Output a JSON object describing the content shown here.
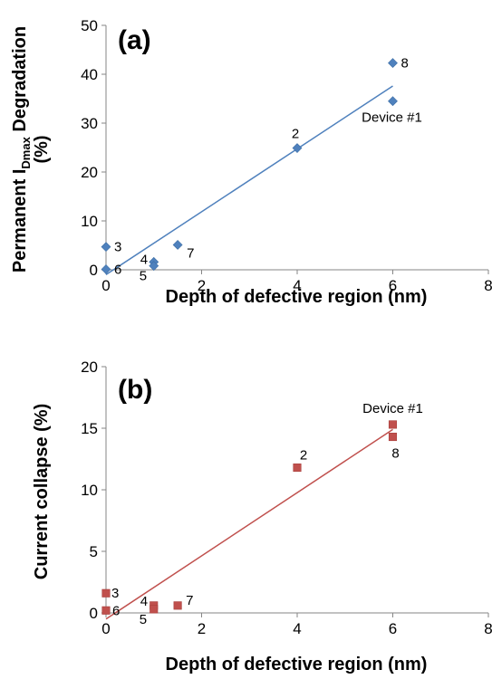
{
  "chart_data": [
    {
      "type": "scatter",
      "panel_label": "(a)",
      "xlabel": "Depth of defective region (nm)",
      "ylabel_prefix": "Permanent I",
      "ylabel_sub": "Dmax",
      "ylabel_suffix": " Degradation",
      "ylabel_line2": "(%)",
      "xlim": [
        0,
        8
      ],
      "ylim": [
        0,
        50
      ],
      "xticks": [
        0,
        2,
        4,
        6,
        8
      ],
      "yticks": [
        0,
        10,
        20,
        30,
        40,
        50
      ],
      "grid": false,
      "marker": "diamond",
      "color": "#4f81bd",
      "points": [
        {
          "x": 0,
          "y": 4.7,
          "label": "3"
        },
        {
          "x": 0,
          "y": 0.1,
          "label": "6"
        },
        {
          "x": 1,
          "y": 1.6,
          "label": "4"
        },
        {
          "x": 1,
          "y": 0.8,
          "label": "5"
        },
        {
          "x": 1.5,
          "y": 5.1,
          "label": "7"
        },
        {
          "x": 4,
          "y": 24.9,
          "label": "2"
        },
        {
          "x": 6,
          "y": 42.3,
          "label": "8"
        },
        {
          "x": 6,
          "y": 34.5,
          "label": "Device #1"
        }
      ],
      "trendline": {
        "x": [
          0,
          6
        ],
        "y": [
          -1.0,
          37.6
        ]
      }
    },
    {
      "type": "scatter",
      "panel_label": "(b)",
      "xlabel": "Depth of defective region (nm)",
      "ylabel": "Current collapse (%)",
      "xlim": [
        0,
        8
      ],
      "ylim": [
        0,
        20
      ],
      "xticks": [
        0,
        2,
        4,
        6,
        8
      ],
      "yticks": [
        0,
        5,
        10,
        15,
        20
      ],
      "grid": false,
      "marker": "square",
      "color": "#c0504d",
      "points": [
        {
          "x": 0,
          "y": 1.6,
          "label": "3"
        },
        {
          "x": 0,
          "y": 0.2,
          "label": "6"
        },
        {
          "x": 1,
          "y": 0.6,
          "label": "4"
        },
        {
          "x": 1,
          "y": 0.3,
          "label": "5"
        },
        {
          "x": 1.5,
          "y": 0.6,
          "label": "7"
        },
        {
          "x": 4,
          "y": 11.8,
          "label": "2"
        },
        {
          "x": 6,
          "y": 15.3,
          "label": "Device #1"
        },
        {
          "x": 6,
          "y": 14.3,
          "label": "8"
        }
      ],
      "trendline": {
        "x": [
          0,
          6
        ],
        "y": [
          -0.5,
          14.9
        ]
      }
    }
  ]
}
